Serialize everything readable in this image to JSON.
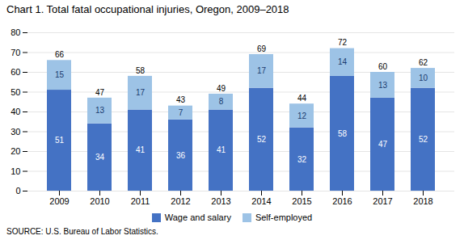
{
  "chart_data": {
    "type": "bar",
    "title": "Chart 1. Total fatal occupational injuries, Oregon, 2009–2018",
    "categories": [
      "2009",
      "2010",
      "2011",
      "2012",
      "2013",
      "2014",
      "2015",
      "2016",
      "2017",
      "2018"
    ],
    "series": [
      {
        "name": "Wage and salary",
        "color": "#4472C4",
        "values": [
          51,
          34,
          41,
          36,
          41,
          52,
          32,
          58,
          47,
          52
        ]
      },
      {
        "name": "Self-employed",
        "color": "#9DC3E6",
        "values": [
          15,
          13,
          17,
          7,
          8,
          17,
          12,
          14,
          13,
          10
        ]
      }
    ],
    "totals": [
      66,
      47,
      58,
      43,
      49,
      69,
      44,
      72,
      60,
      62
    ],
    "stacked": true,
    "data_labels": true,
    "ylim": [
      0,
      80
    ],
    "yticks": [
      0,
      10,
      20,
      30,
      40,
      50,
      60,
      70,
      80
    ],
    "grid": true,
    "legend": "bottom",
    "annotations": [
      "SOURCE: U.S. Bureau of Labor Statistics."
    ]
  }
}
